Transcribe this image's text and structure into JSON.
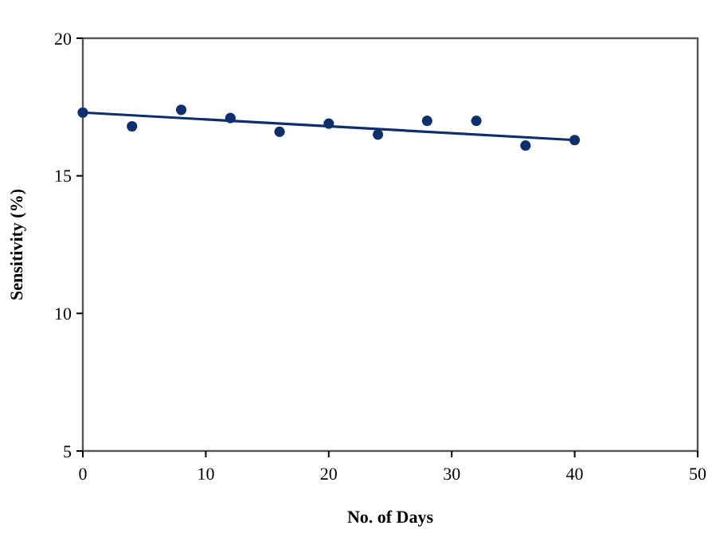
{
  "chart_data": {
    "type": "scatter",
    "xlabel": "No. of Days",
    "ylabel": "Sensitivity (%)",
    "xlim": [
      0,
      50
    ],
    "xticks": [
      0,
      10,
      20,
      30,
      40,
      50
    ],
    "ylim": [
      5,
      20
    ],
    "yticks": [
      5,
      10,
      15,
      20
    ],
    "grid": false,
    "marker": "circle",
    "series": [
      {
        "color": "#0d2f6e",
        "x": [
          0,
          4,
          8,
          12,
          16,
          20,
          24,
          28,
          32,
          36,
          40
        ],
        "values": [
          17.3,
          16.8,
          17.4,
          17.1,
          16.6,
          16.9,
          16.5,
          17.0,
          17.0,
          16.1,
          16.3
        ]
      },
      {
        "type": "line",
        "color": "#0d2f6e",
        "x": [
          0,
          40
        ],
        "values": [
          17.3,
          16.3
        ],
        "marker": "none",
        "line_style": "solid"
      }
    ]
  }
}
